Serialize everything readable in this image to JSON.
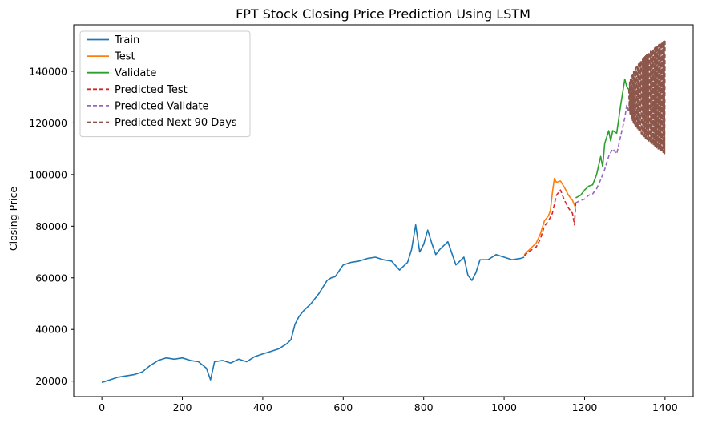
{
  "chart_data": {
    "type": "line",
    "title": "FPT Stock Closing Price Prediction Using LSTM",
    "xlabel": "",
    "ylabel": "Closing Price",
    "xlim": [
      -70,
      1470
    ],
    "ylim": [
      14000,
      158000
    ],
    "x_ticks": [
      0,
      200,
      400,
      600,
      800,
      1000,
      1200,
      1400
    ],
    "y_ticks": [
      20000,
      40000,
      60000,
      80000,
      100000,
      120000,
      140000
    ],
    "grid": false,
    "legend_position": "top-left",
    "series": [
      {
        "name": "Train",
        "color": "#1f77b4",
        "style": "solid",
        "x": [
          0,
          20,
          40,
          60,
          80,
          100,
          120,
          140,
          160,
          180,
          200,
          220,
          240,
          260,
          270,
          280,
          300,
          320,
          340,
          360,
          380,
          400,
          420,
          440,
          460,
          470,
          480,
          490,
          500,
          520,
          540,
          560,
          570,
          580,
          600,
          620,
          640,
          660,
          680,
          700,
          720,
          740,
          760,
          770,
          780,
          790,
          800,
          810,
          820,
          830,
          840,
          860,
          880,
          900,
          910,
          920,
          930,
          940,
          960,
          980,
          1000,
          1020,
          1040,
          1050
        ],
        "y": [
          19500,
          20500,
          21500,
          22000,
          22500,
          23500,
          26000,
          28000,
          29000,
          28500,
          29000,
          28000,
          27500,
          25000,
          20500,
          27500,
          28000,
          27000,
          28500,
          27500,
          29500,
          30500,
          31500,
          32500,
          34500,
          36000,
          42000,
          45000,
          47000,
          50000,
          54000,
          59000,
          60000,
          60500,
          65000,
          66000,
          66500,
          67500,
          68000,
          67000,
          66500,
          63000,
          66000,
          71000,
          80500,
          70000,
          73000,
          78500,
          73500,
          69000,
          71000,
          74000,
          65000,
          68000,
          61000,
          59000,
          62000,
          67000,
          67000,
          69000,
          68000,
          67000,
          67500,
          68000
        ]
      },
      {
        "name": "Test",
        "color": "#ff7f0e",
        "style": "solid",
        "x": [
          1050,
          1060,
          1070,
          1080,
          1090,
          1100,
          1110,
          1115,
          1120,
          1125,
          1130,
          1140,
          1150,
          1160,
          1170,
          1178
        ],
        "y": [
          69000,
          70500,
          72000,
          73500,
          77000,
          82000,
          84000,
          86000,
          93000,
          98500,
          97000,
          97500,
          95000,
          92000,
          90000,
          87000
        ]
      },
      {
        "name": "Validate",
        "color": "#2ca02c",
        "style": "solid",
        "x": [
          1178,
          1190,
          1200,
          1210,
          1220,
          1230,
          1240,
          1245,
          1250,
          1260,
          1265,
          1270,
          1280,
          1290,
          1295,
          1300,
          1305,
          1310
        ],
        "y": [
          91000,
          92000,
          94000,
          95500,
          96000,
          100000,
          107000,
          103000,
          112000,
          117000,
          113000,
          117000,
          116000,
          127000,
          132000,
          137000,
          134000,
          133000
        ]
      },
      {
        "name": "Predicted Test",
        "color": "#d62728",
        "style": "dashed",
        "x": [
          1050,
          1060,
          1070,
          1080,
          1090,
          1100,
          1110,
          1120,
          1130,
          1140,
          1150,
          1160,
          1170,
          1175,
          1178
        ],
        "y": [
          68500,
          70000,
          71000,
          72000,
          75000,
          80000,
          82000,
          85000,
          92000,
          94000,
          90000,
          87000,
          85000,
          80500,
          89000
        ]
      },
      {
        "name": "Predicted Validate",
        "color": "#9467bd",
        "style": "dashed",
        "x": [
          1178,
          1190,
          1200,
          1210,
          1220,
          1230,
          1240,
          1250,
          1260,
          1270,
          1280,
          1290,
          1300,
          1305,
          1310
        ],
        "y": [
          89000,
          90000,
          90500,
          92000,
          92500,
          94500,
          98000,
          102000,
          107000,
          110000,
          108000,
          115000,
          122000,
          127000,
          124000
        ]
      },
      {
        "name": "Predicted Next 90 Days",
        "color": "#8c564b",
        "style": "dashed",
        "x_start": 1310,
        "x_end": 1400,
        "center": 130000,
        "amplitude_start": 3000,
        "amplitude_end": 22000
      }
    ]
  }
}
